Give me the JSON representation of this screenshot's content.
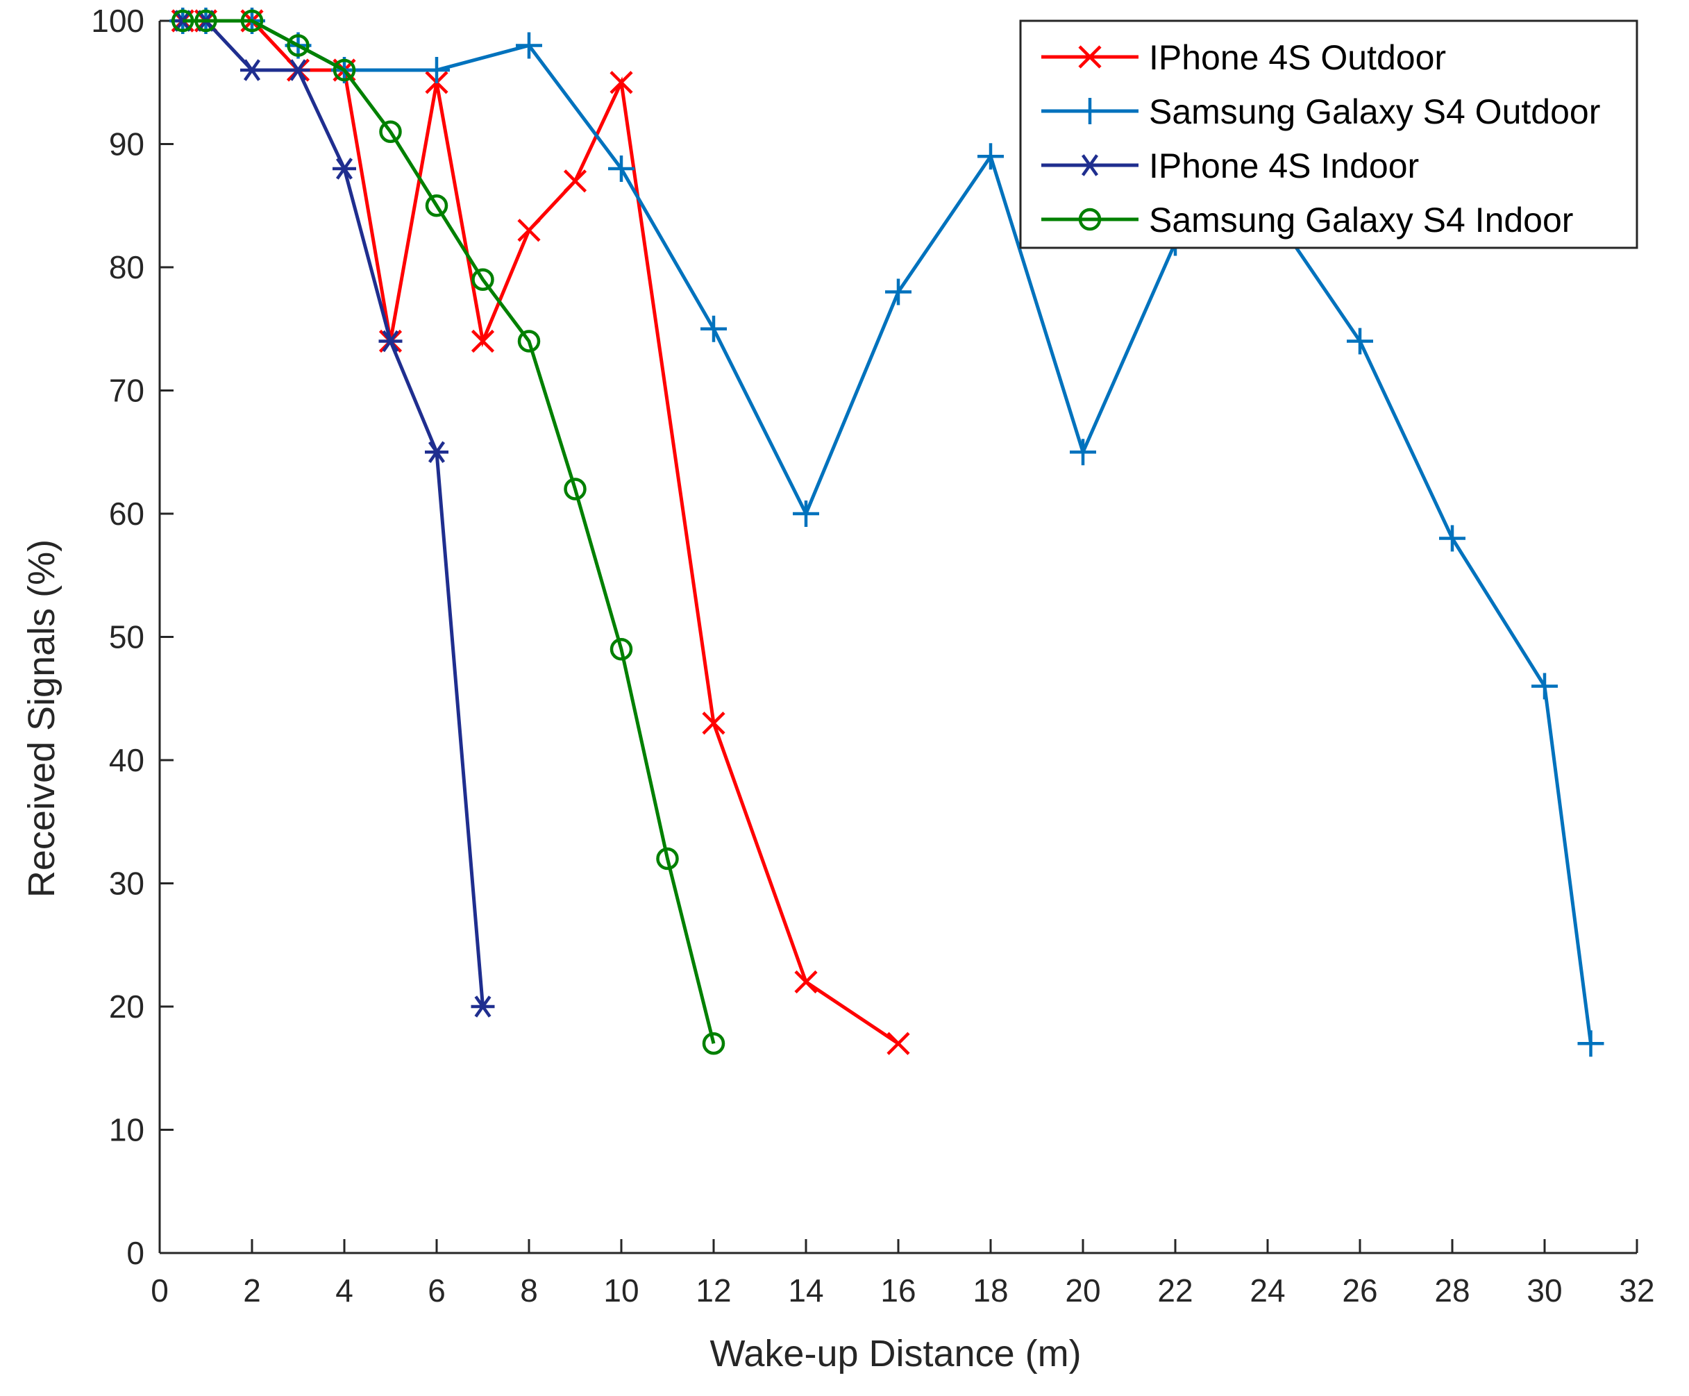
{
  "chart_data": {
    "type": "line",
    "title": "",
    "xlabel": "Wake-up Distance (m)",
    "ylabel": "Received Signals (%)",
    "xlim": [
      0,
      32
    ],
    "ylim": [
      0,
      100
    ],
    "xticks": [
      0,
      2,
      4,
      6,
      8,
      10,
      12,
      14,
      16,
      18,
      20,
      22,
      24,
      26,
      28,
      30,
      32
    ],
    "yticks": [
      0,
      10,
      20,
      30,
      40,
      50,
      60,
      70,
      80,
      90,
      100
    ],
    "grid": false,
    "legend_position": "top-right",
    "series": [
      {
        "name": "IPhone 4S Outdoor",
        "color": "#ff0000",
        "marker": "x",
        "x": [
          0.5,
          1,
          2,
          3,
          4,
          5,
          6,
          7,
          8,
          9,
          10,
          12,
          14,
          16
        ],
        "y": [
          100,
          100,
          100,
          96,
          96,
          74,
          95,
          74,
          83,
          87,
          95,
          43,
          22,
          17
        ]
      },
      {
        "name": "Samsung Galaxy S4 Outdoor",
        "color": "#0072bd",
        "marker": "plus",
        "x": [
          0.5,
          1,
          2,
          3,
          4,
          6,
          8,
          10,
          12,
          14,
          16,
          18,
          20,
          22,
          24,
          26,
          28,
          30,
          31
        ],
        "y": [
          100,
          100,
          100,
          98,
          96,
          96,
          98,
          88,
          75,
          60,
          78,
          89,
          65,
          82,
          85,
          74,
          58,
          46,
          17
        ]
      },
      {
        "name": "IPhone 4S Indoor",
        "color": "#1f2e8f",
        "marker": "asterisk",
        "x": [
          0.5,
          1,
          2,
          3,
          4,
          5,
          6,
          7
        ],
        "y": [
          100,
          100,
          96,
          96,
          88,
          74,
          65,
          20
        ]
      },
      {
        "name": "Samsung Galaxy S4 Indoor",
        "color": "#008000",
        "marker": "circle",
        "x": [
          0.5,
          1,
          2,
          3,
          4,
          5,
          6,
          7,
          8,
          9,
          10,
          11,
          12
        ],
        "y": [
          100,
          100,
          100,
          98,
          96,
          91,
          85,
          79,
          74,
          62,
          49,
          32,
          17
        ]
      }
    ]
  }
}
